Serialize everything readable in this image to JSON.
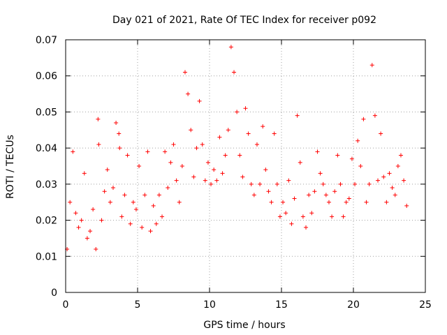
{
  "chart_data": {
    "type": "scatter",
    "title": "Day 021 of 2021, Rate Of TEC Index for receiver p092",
    "xlabel": "GPS time / hours",
    "ylabel": "ROTI / TECUs",
    "xlim": [
      0,
      25
    ],
    "ylim": [
      0,
      0.07
    ],
    "x_ticks": [
      "0",
      "5",
      "10",
      "15",
      "20",
      "25"
    ],
    "y_ticks": [
      "0",
      "0.01",
      "0.02",
      "0.03",
      "0.04",
      "0.05",
      "0.06",
      "0.07"
    ],
    "grid": true,
    "legend": "none",
    "marker": "plus",
    "color": "#ff0000",
    "series": [
      {
        "x": [
          0.1,
          0.3,
          0.5,
          0.7,
          0.9,
          1.1,
          1.3,
          1.5,
          1.7,
          1.9,
          2.1,
          2.25,
          2.3,
          2.5,
          2.7,
          2.9,
          3.1,
          3.3,
          3.5,
          3.7,
          3.75,
          3.9,
          4.1,
          4.3,
          4.5,
          4.7,
          4.9,
          5.1,
          5.3,
          5.5,
          5.7,
          5.9,
          6.1,
          6.3,
          6.5,
          6.7,
          6.9,
          7.1,
          7.3,
          7.5,
          7.7,
          7.9,
          8.1,
          8.3,
          8.5,
          8.7,
          8.9,
          9.1,
          9.3,
          9.5,
          9.7,
          9.9,
          10.1,
          10.3,
          10.5,
          10.7,
          10.9,
          11.1,
          11.3,
          11.5,
          11.7,
          11.9,
          12.1,
          12.3,
          12.5,
          12.7,
          12.9,
          13.1,
          13.3,
          13.5,
          13.7,
          13.9,
          14.1,
          14.3,
          14.5,
          14.7,
          14.9,
          15.1,
          15.3,
          15.5,
          15.7,
          15.9,
          16.1,
          16.3,
          16.5,
          16.7,
          16.9,
          17.1,
          17.3,
          17.5,
          17.7,
          17.9,
          18.1,
          18.3,
          18.5,
          18.7,
          18.9,
          19.1,
          19.3,
          19.5,
          19.7,
          19.9,
          20.1,
          20.3,
          20.5,
          20.7,
          20.9,
          21.1,
          21.3,
          21.5,
          21.7,
          21.9,
          22.1,
          22.3,
          22.5,
          22.7,
          22.9,
          23.1,
          23.3,
          23.5,
          23.7
        ],
        "y": [
          0.012,
          0.025,
          0.039,
          0.022,
          0.018,
          0.02,
          0.033,
          0.015,
          0.017,
          0.023,
          0.012,
          0.048,
          0.041,
          0.02,
          0.028,
          0.034,
          0.025,
          0.029,
          0.047,
          0.044,
          0.04,
          0.021,
          0.027,
          0.038,
          0.019,
          0.025,
          0.023,
          0.035,
          0.018,
          0.027,
          0.039,
          0.017,
          0.024,
          0.019,
          0.027,
          0.021,
          0.039,
          0.029,
          0.036,
          0.041,
          0.031,
          0.025,
          0.035,
          0.061,
          0.055,
          0.045,
          0.032,
          0.04,
          0.053,
          0.041,
          0.031,
          0.036,
          0.03,
          0.034,
          0.031,
          0.043,
          0.033,
          0.038,
          0.045,
          0.068,
          0.061,
          0.05,
          0.038,
          0.032,
          0.051,
          0.044,
          0.03,
          0.027,
          0.041,
          0.03,
          0.046,
          0.034,
          0.028,
          0.025,
          0.044,
          0.03,
          0.021,
          0.025,
          0.022,
          0.031,
          0.019,
          0.026,
          0.049,
          0.036,
          0.021,
          0.018,
          0.027,
          0.022,
          0.028,
          0.039,
          0.033,
          0.03,
          0.027,
          0.025,
          0.021,
          0.028,
          0.038,
          0.03,
          0.021,
          0.025,
          0.026,
          0.037,
          0.03,
          0.042,
          0.035,
          0.048,
          0.025,
          0.03,
          0.063,
          0.049,
          0.031,
          0.044,
          0.032,
          0.025,
          0.033,
          0.029,
          0.027,
          0.035,
          0.038,
          0.031,
          0.024
        ]
      }
    ]
  }
}
